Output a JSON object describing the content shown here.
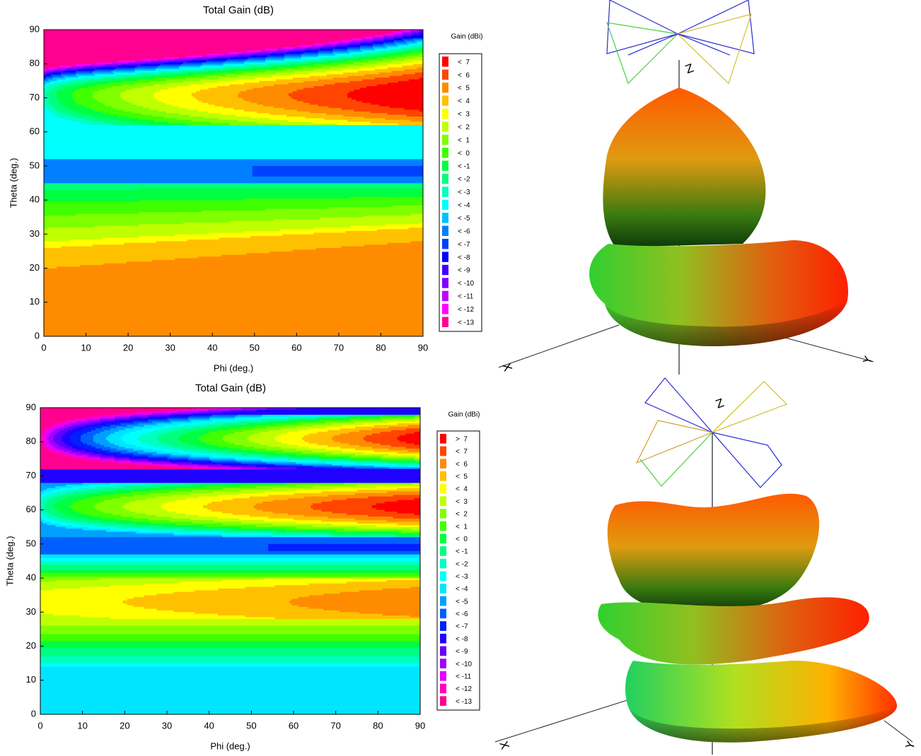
{
  "chart_data": [
    {
      "type": "contour",
      "title": "Total Gain (dB)",
      "x_label": "Phi (deg.)",
      "y_label": "Theta (deg.)",
      "xlim": [
        0,
        90
      ],
      "ylim": [
        0,
        90
      ],
      "xticks": [
        0,
        10,
        20,
        30,
        40,
        50,
        60,
        70,
        80,
        90
      ],
      "yticks": [
        0,
        10,
        20,
        30,
        40,
        50,
        60,
        70,
        80,
        90
      ],
      "legend_title": "Gain (dBi)",
      "legend": [
        {
          "value": 7,
          "label": "<  7",
          "color": "#ff0000"
        },
        {
          "value": 6,
          "label": "<  6",
          "color": "#ff4500"
        },
        {
          "value": 5,
          "label": "<  5",
          "color": "#ff8c00"
        },
        {
          "value": 4,
          "label": "<  4",
          "color": "#ffc000"
        },
        {
          "value": 3,
          "label": "<  3",
          "color": "#ffff00"
        },
        {
          "value": 2,
          "label": "<  2",
          "color": "#c0ff00"
        },
        {
          "value": 1,
          "label": "<  1",
          "color": "#80ff00"
        },
        {
          "value": 0,
          "label": "<  0",
          "color": "#40ff00"
        },
        {
          "value": -1,
          "label": "< -1",
          "color": "#00ff40"
        },
        {
          "value": -2,
          "label": "< -2",
          "color": "#00ff80"
        },
        {
          "value": -3,
          "label": "< -3",
          "color": "#00ffc0"
        },
        {
          "value": -4,
          "label": "< -4",
          "color": "#00ffff"
        },
        {
          "value": -5,
          "label": "< -5",
          "color": "#00c0ff"
        },
        {
          "value": -6,
          "label": "< -6",
          "color": "#0080ff"
        },
        {
          "value": -7,
          "label": "< -7",
          "color": "#0040ff"
        },
        {
          "value": -8,
          "label": "< -8",
          "color": "#0000ff"
        },
        {
          "value": -9,
          "label": "< -9",
          "color": "#4000ff"
        },
        {
          "value": -10,
          "label": "< -10",
          "color": "#8000ff"
        },
        {
          "value": -11,
          "label": "< -11",
          "color": "#c000ff"
        },
        {
          "value": -12,
          "label": "< -12",
          "color": "#ff00ff"
        },
        {
          "value": -13,
          "label": "< -13",
          "color": "#ff0090"
        }
      ]
    },
    {
      "type": "contour",
      "title": "Total Gain (dB)",
      "x_label": "Phi (deg.)",
      "y_label": "Theta (deg.)",
      "xlim": [
        0,
        90
      ],
      "ylim": [
        0,
        90
      ],
      "xticks": [
        0,
        10,
        20,
        30,
        40,
        50,
        60,
        70,
        80,
        90
      ],
      "yticks": [
        0,
        10,
        20,
        30,
        40,
        50,
        60,
        70,
        80,
        90
      ],
      "legend_title": "Gain (dBi)",
      "legend": [
        {
          "value": 7,
          "label": ">  7",
          "color": "#ff0000"
        },
        {
          "value": 7,
          "label": "<  7",
          "color": "#ff4500"
        },
        {
          "value": 6,
          "label": "<  6",
          "color": "#ff8c00"
        },
        {
          "value": 5,
          "label": "<  5",
          "color": "#ffc000"
        },
        {
          "value": 4,
          "label": "<  4",
          "color": "#ffff00"
        },
        {
          "value": 3,
          "label": "<  3",
          "color": "#c0ff00"
        },
        {
          "value": 2,
          "label": "<  2",
          "color": "#80ff00"
        },
        {
          "value": 1,
          "label": "<  1",
          "color": "#40ff00"
        },
        {
          "value": 0,
          "label": "<  0",
          "color": "#00ff40"
        },
        {
          "value": -1,
          "label": "< -1",
          "color": "#00ff80"
        },
        {
          "value": -2,
          "label": "< -2",
          "color": "#00ffc0"
        },
        {
          "value": -3,
          "label": "< -3",
          "color": "#00ffff"
        },
        {
          "value": -4,
          "label": "< -4",
          "color": "#00e5ff"
        },
        {
          "value": -5,
          "label": "< -5",
          "color": "#00a0ff"
        },
        {
          "value": -6,
          "label": "< -6",
          "color": "#0060ff"
        },
        {
          "value": -7,
          "label": "< -7",
          "color": "#0020ff"
        },
        {
          "value": -8,
          "label": "< -8",
          "color": "#2000ff"
        },
        {
          "value": -9,
          "label": "< -9",
          "color": "#6000ff"
        },
        {
          "value": -10,
          "label": "< -10",
          "color": "#a000ff"
        },
        {
          "value": -11,
          "label": "< -11",
          "color": "#e000ff"
        },
        {
          "value": -12,
          "label": "< -12",
          "color": "#ff00c0"
        },
        {
          "value": -13,
          "label": "< -13",
          "color": "#ff0090"
        }
      ]
    },
    {
      "type": "pattern3d",
      "x_label": "X",
      "y_label": "Y",
      "z_label": "Z"
    },
    {
      "type": "pattern3d",
      "x_label": "X",
      "y_label": "Y",
      "z_label": "Z"
    }
  ]
}
